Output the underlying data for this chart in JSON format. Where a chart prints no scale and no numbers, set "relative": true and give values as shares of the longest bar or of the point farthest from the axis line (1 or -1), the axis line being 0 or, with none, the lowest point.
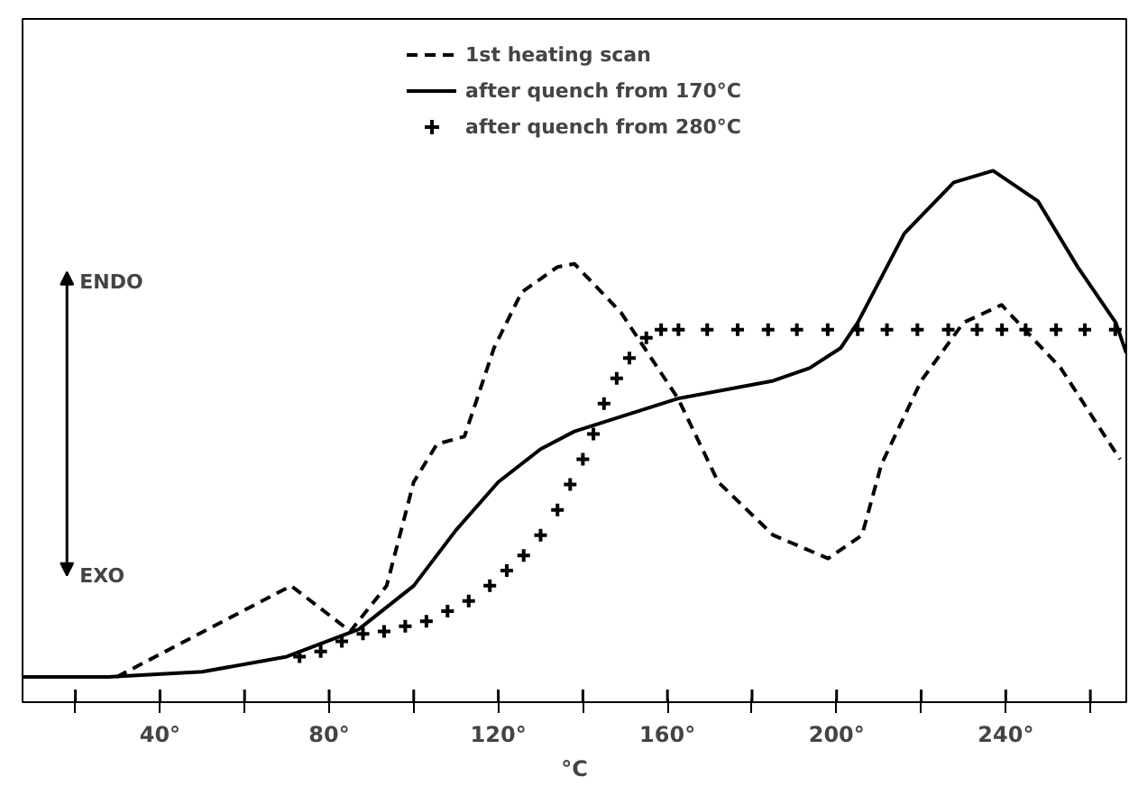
{
  "chart_data": {
    "type": "line",
    "relative": true,
    "xlabel": "°C",
    "xlim": [
      7.5,
      268.5
    ],
    "xticks": [
      {
        "value": 20,
        "label": null
      },
      {
        "value": 40,
        "label": "40°"
      },
      {
        "value": 60,
        "label": null
      },
      {
        "value": 80,
        "label": "80°"
      },
      {
        "value": 100,
        "label": null
      },
      {
        "value": 120,
        "label": "120°"
      },
      {
        "value": 140,
        "label": null
      },
      {
        "value": 160,
        "label": "160°"
      },
      {
        "value": 180,
        "label": null
      },
      {
        "value": 200,
        "label": "200°"
      },
      {
        "value": 220,
        "label": null
      },
      {
        "value": 240,
        "label": "240°"
      },
      {
        "value": 260,
        "label": null
      }
    ],
    "legend": "top",
    "grid": false,
    "annotations": [
      "ENDO",
      "EXO"
    ],
    "series": [
      {
        "name": "1st heating scan",
        "color": "#000000",
        "line_style": "dashed",
        "x": [
          29.8,
          71,
          85,
          93.6,
          100,
          105.5,
          112,
          119,
          125.5,
          134,
          138,
          149,
          162.5,
          172,
          185,
          198,
          206,
          210.6,
          220,
          230,
          239,
          253,
          267
        ],
        "values": [
          0,
          0.18,
          0.09,
          0.18,
          0.385,
          0.46,
          0.475,
          0.65,
          0.76,
          0.81,
          0.816,
          0.72,
          0.55,
          0.385,
          0.28,
          0.234,
          0.28,
          0.42,
          0.585,
          0.7,
          0.735,
          0.61,
          0.43
        ]
      },
      {
        "name": "after quench from 170°C",
        "color": "#000000",
        "line_style": "solid",
        "x": [
          7.5,
          27.7,
          50,
          70,
          87,
          100,
          110,
          120,
          130,
          138,
          162.5,
          185,
          193.6,
          201,
          205,
          216,
          227.7,
          237,
          247.6,
          257,
          266,
          268.5
        ],
        "values": [
          0,
          0,
          0.01,
          0.04,
          0.094,
          0.18,
          0.29,
          0.385,
          0.45,
          0.485,
          0.55,
          0.585,
          0.61,
          0.65,
          0.7,
          0.876,
          0.977,
          1,
          0.94,
          0.81,
          0.7,
          0.64
        ]
      },
      {
        "name": "after quench from 280°C",
        "type": "scatter",
        "marker": "cross",
        "color": "#000000",
        "x": [
          73,
          78,
          83,
          88,
          93,
          98,
          103,
          108,
          113,
          118,
          122,
          126,
          130,
          134,
          137,
          140,
          142.5,
          145,
          148,
          151,
          155,
          158.5,
          162.6,
          169.4,
          176.6,
          183.8,
          190.6,
          197.9,
          205,
          211.9,
          219.1,
          226.4,
          233.2,
          239.1,
          244.7,
          251.9,
          258.7,
          265.9
        ],
        "values": [
          0.04,
          0.05,
          0.07,
          0.085,
          0.09,
          0.1,
          0.11,
          0.13,
          0.15,
          0.18,
          0.21,
          0.24,
          0.28,
          0.33,
          0.38,
          0.43,
          0.48,
          0.54,
          0.59,
          0.63,
          0.67,
          0.686,
          0.686,
          0.686,
          0.686,
          0.686,
          0.686,
          0.686,
          0.686,
          0.686,
          0.686,
          0.686,
          0.686,
          0.686,
          0.686,
          0.686,
          0.686,
          0.686
        ]
      }
    ]
  }
}
